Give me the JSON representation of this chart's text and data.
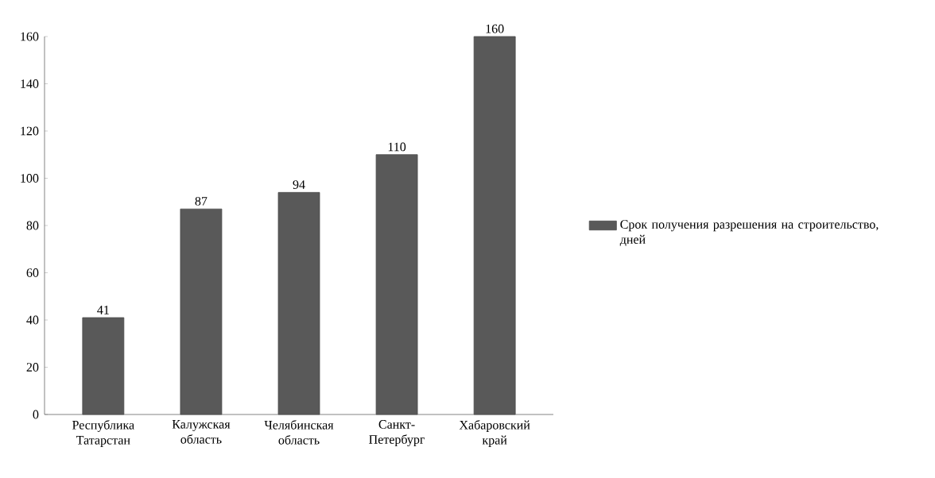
{
  "chart_data": {
    "type": "bar",
    "categories": [
      "Республика Татарстан",
      "Калужская область",
      "Челябинская область",
      "Санкт-Петербург",
      "Хабаровский край"
    ],
    "series": [
      {
        "name": "Срок получения разрешения на строительство, дней",
        "color": "#595959",
        "values": [
          41,
          87,
          94,
          110,
          160
        ]
      }
    ],
    "ylim": [
      0,
      160
    ],
    "yticks": [
      0,
      20,
      40,
      60,
      80,
      100,
      120,
      140,
      160
    ],
    "data_labels": true,
    "legend": "right"
  }
}
